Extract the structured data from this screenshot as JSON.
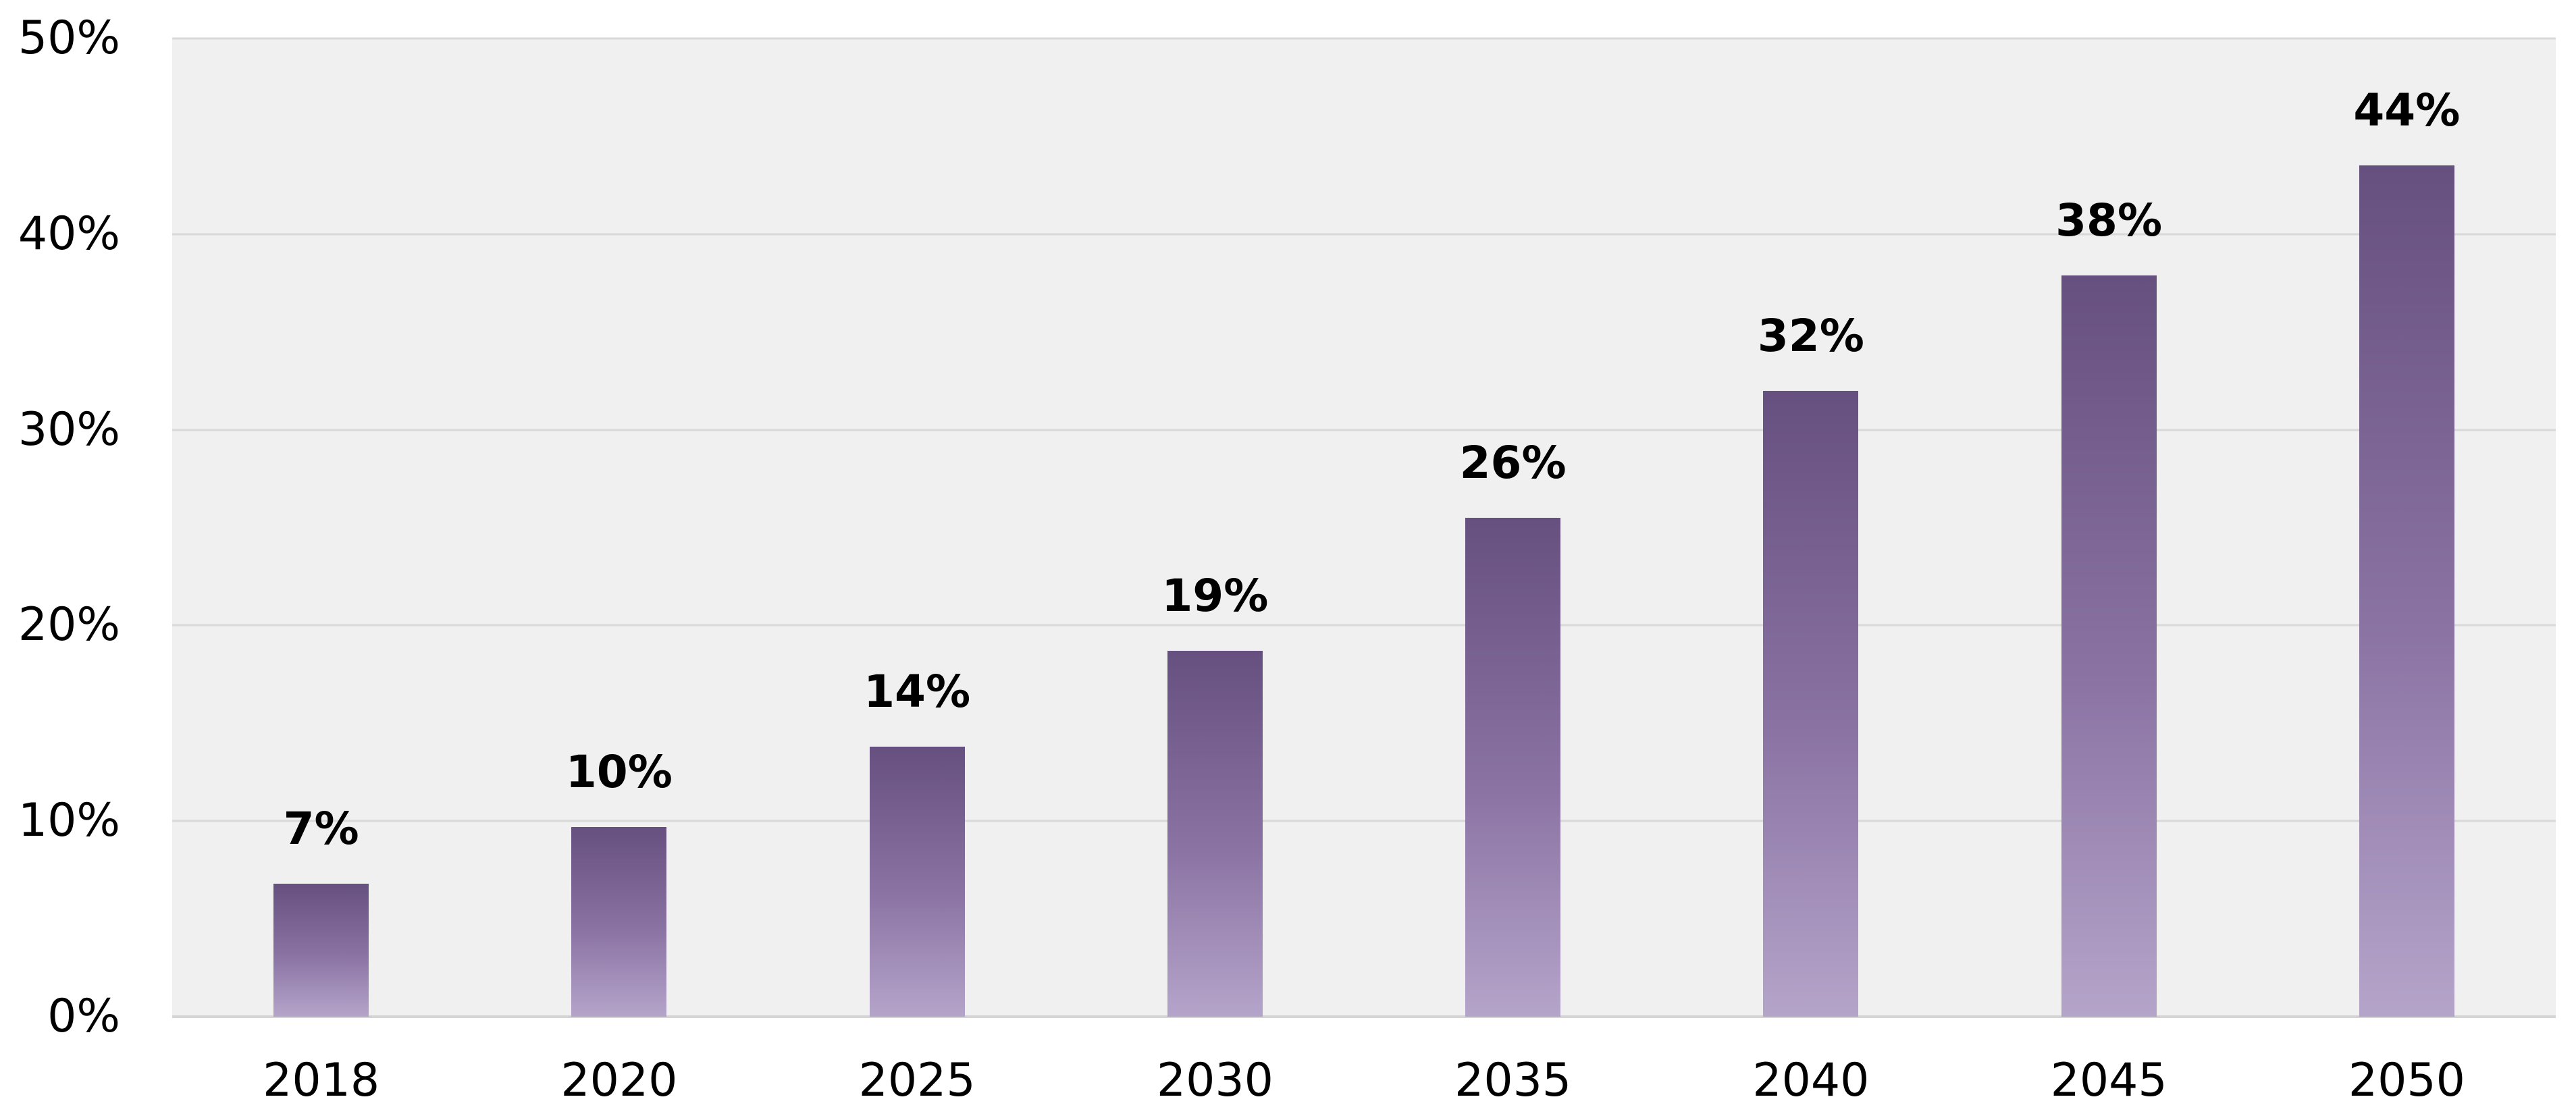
{
  "page": {
    "background": "#ffffff"
  },
  "chart_data": {
    "type": "bar",
    "title": "",
    "categories": [
      "2018",
      "2020",
      "2025",
      "2030",
      "2035",
      "2040",
      "2045",
      "2050"
    ],
    "values": [
      7,
      10,
      14,
      19,
      26,
      32,
      38,
      44
    ],
    "data_labels": [
      "7%",
      "10%",
      "14%",
      "19%",
      "26%",
      "32%",
      "38%",
      "44%"
    ],
    "plotted_values": [
      6.8,
      9.7,
      13.8,
      18.7,
      25.5,
      32.0,
      37.9,
      43.5
    ],
    "xlabel": "",
    "ylabel": "",
    "ylim": [
      0,
      50
    ],
    "y_tick_step": 10,
    "y_ticks": [
      "50%",
      "40%",
      "30%",
      "20%",
      "10%",
      "0%"
    ],
    "grid": "horizontal",
    "legend": "none",
    "colors": {
      "bar_gradient_top": "#66507f",
      "bar_gradient_mid": "#8b74a4",
      "bar_gradient_bottom": "#b5a4ca",
      "plot_background": "#f1f0f0",
      "gridline": "#d9d9d9",
      "axis_line": "#d4d4d4",
      "text": "#000000",
      "page_background": "#ffffff"
    }
  }
}
